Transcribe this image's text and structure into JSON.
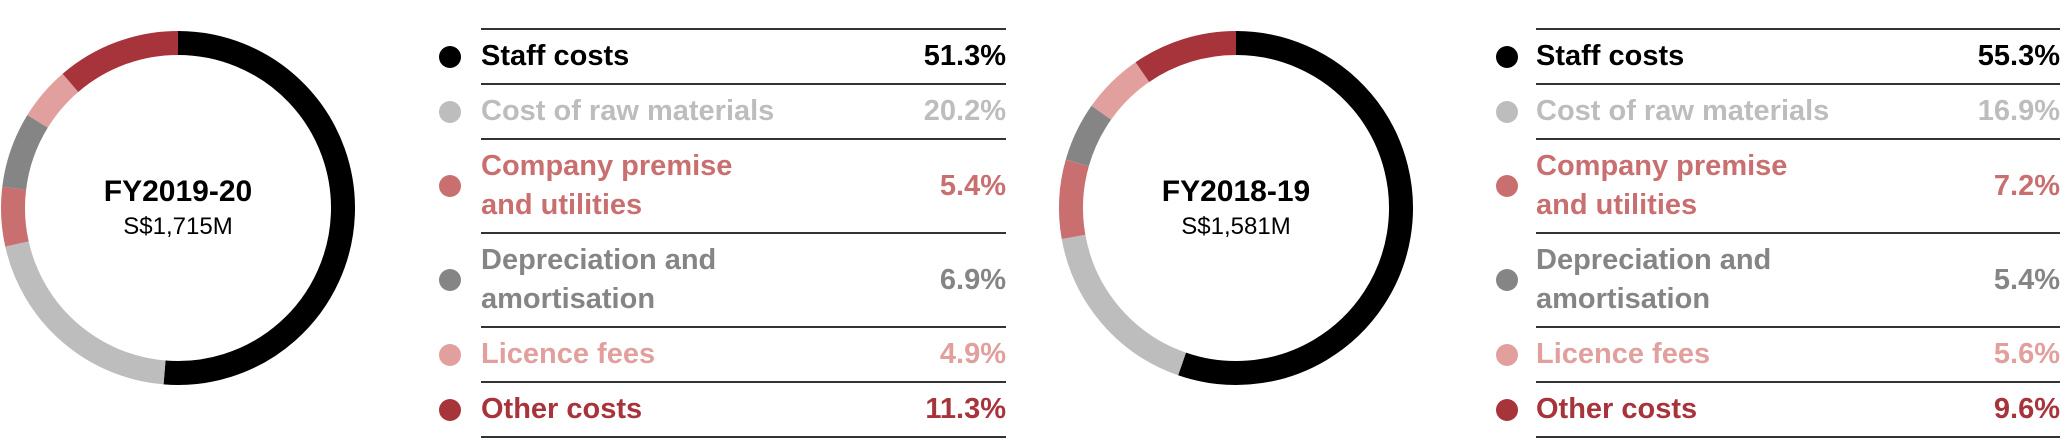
{
  "chart_data": [
    {
      "type": "pie",
      "title": "FY2019-20",
      "subtitle": "S$1,715M",
      "categories": [
        "Staff costs",
        "Cost of raw materials",
        "Company premise\nand utilities",
        "Depreciation and\namortisation",
        "Licence fees",
        "Other costs"
      ],
      "values": [
        51.3,
        20.2,
        5.4,
        6.9,
        4.9,
        11.3
      ],
      "value_labels": [
        "51.3%",
        "20.2%",
        "5.4%",
        "6.9%",
        "4.9%",
        "11.3%"
      ],
      "colors": [
        "#000000",
        "#bdbdbd",
        "#c96f70",
        "#858585",
        "#e1a09e",
        "#a7333b"
      ]
    },
    {
      "type": "pie",
      "title": "FY2018-19",
      "subtitle": "S$1,581M",
      "categories": [
        "Staff costs",
        "Cost of raw materials",
        "Company premise\nand utilities",
        "Depreciation and\namortisation",
        "Licence fees",
        "Other costs"
      ],
      "values": [
        55.3,
        16.9,
        7.2,
        5.4,
        5.6,
        9.6
      ],
      "value_labels": [
        "55.3%",
        "16.9%",
        "7.2%",
        "5.4%",
        "5.6%",
        "9.6%"
      ],
      "colors": [
        "#000000",
        "#bdbdbd",
        "#c96f70",
        "#858585",
        "#e1a09e",
        "#a7333b"
      ]
    }
  ]
}
